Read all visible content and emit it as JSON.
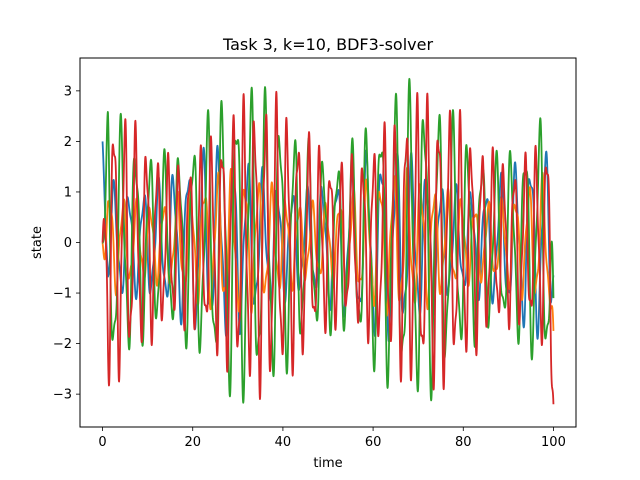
{
  "chart_data": {
    "type": "line",
    "title": "Task 3, k=10, BDF3-solver",
    "xlabel": "time",
    "ylabel": "state",
    "xlim": [
      -5,
      105
    ],
    "ylim": [
      -3.65,
      3.65
    ],
    "xticks": [
      0,
      20,
      40,
      60,
      80,
      100
    ],
    "yticks": [
      -3,
      -2,
      -1,
      0,
      1,
      2,
      3
    ],
    "grid": false,
    "legend": "none",
    "series": [
      {
        "color": "#1f77b4",
        "amplitude": 2.0,
        "start": 2.0,
        "period": 3.3,
        "end": -0.65
      },
      {
        "color": "#ff7f0e",
        "amplitude": 1.5,
        "start": 0.0,
        "period": 3.0,
        "end": -1.75
      },
      {
        "color": "#2ca02c",
        "amplitude": 3.3,
        "start": 0.0,
        "period": 3.2,
        "end": -1.1
      },
      {
        "color": "#d62728",
        "amplitude": 3.1,
        "start": 0.0,
        "period": 2.4,
        "end": -3.2
      }
    ]
  }
}
